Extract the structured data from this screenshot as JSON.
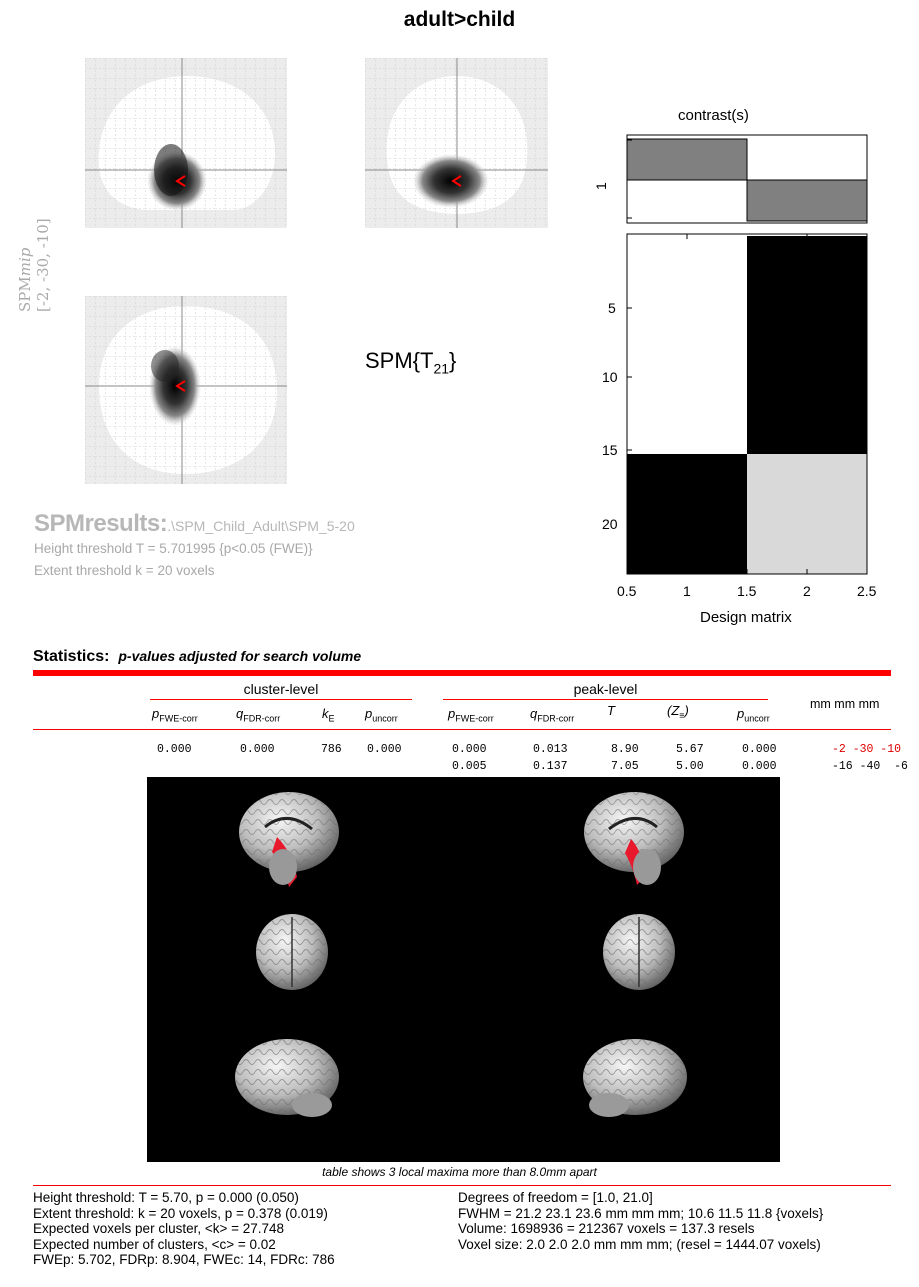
{
  "header": {
    "title": "adult>child"
  },
  "glass_brain": {
    "mip_label_main": "SPM",
    "mip_label_italic": "mip",
    "coordinates": "[-2, -30, -10]"
  },
  "spm_stat": {
    "prefix": "SPM{T",
    "subscript": "21",
    "suffix": "}"
  },
  "results": {
    "title": "SPMresults:",
    "path": ".\\SPM_Child_Adult\\SPM_5-20",
    "height_threshold": "Height threshold T = 5.701995  {p<0.05 (FWE)}",
    "extent_threshold": "Extent threshold k = 20 voxels"
  },
  "contrast_panel": {
    "title": "contrast(s)",
    "y_tick": "1"
  },
  "design_matrix": {
    "title": "Design matrix",
    "y_ticks": [
      "5",
      "10",
      "15",
      "20"
    ],
    "x_ticks": [
      "0.5",
      "1",
      "1.5",
      "2",
      "2.5"
    ]
  },
  "statistics": {
    "title": "Statistics:",
    "subtitle": "p-values adjusted for search volume",
    "cluster_level_label": "cluster-level",
    "peak_level_label": "peak-level",
    "mm_label": "mm mm mm",
    "col_headers": {
      "p_fwe": "p",
      "p_fwe_sub": "FWE-corr",
      "q_fdr": "q",
      "q_fdr_sub": "FDR-corr",
      "ke": "k",
      "ke_sub": "E",
      "p_unc": "p",
      "p_unc_sub": "uncorr",
      "t": "T",
      "z": "(Z",
      "z_sub": "≡",
      "z_close": ")"
    },
    "rows": [
      {
        "c_pfwe": "0.000",
        "c_qfdr": "0.000",
        "c_ke": "786",
        "c_punc": "0.000",
        "p_pfwe": "0.000",
        "p_qfdr": "0.013",
        "p_t": "8.90",
        "p_z": "5.67",
        "p_punc": "0.000",
        "mm": "-2 -30 -10"
      },
      {
        "c_pfwe": "",
        "c_qfdr": "",
        "c_ke": "",
        "c_punc": "",
        "p_pfwe": "0.005",
        "p_qfdr": "0.137",
        "p_t": "7.05",
        "p_z": "5.00",
        "p_punc": "0.000",
        "mm": "-16 -40  -6"
      }
    ]
  },
  "footer": {
    "table_note": "table shows 3 local maxima more than 8.0mm apart",
    "left": [
      "Height threshold: T = 5.70, p = 0.000 (0.050)",
      "Extent threshold: k = 20 voxels, p = 0.378 (0.019)",
      "Expected voxels per cluster, <k> = 27.748",
      "Expected number of clusters, <c> = 0.02",
      "FWEp: 5.702, FDRp: 8.904, FWEc: 14, FDRc: 786"
    ],
    "right": [
      "Degrees of freedom = [1.0, 21.0]",
      "FWHM = 21.2 23.1 23.6 mm mm mm; 10.6 11.5 11.8 {voxels}",
      "Volume: 1698936 = 212367 voxels = 137.3 resels",
      "Voxel size: 2.0 2.0 2.0 mm mm mm; (resel = 1444.07 voxels)"
    ]
  },
  "colors": {
    "accent": "#ff0000",
    "cluster_overlay": "#e8192c"
  }
}
